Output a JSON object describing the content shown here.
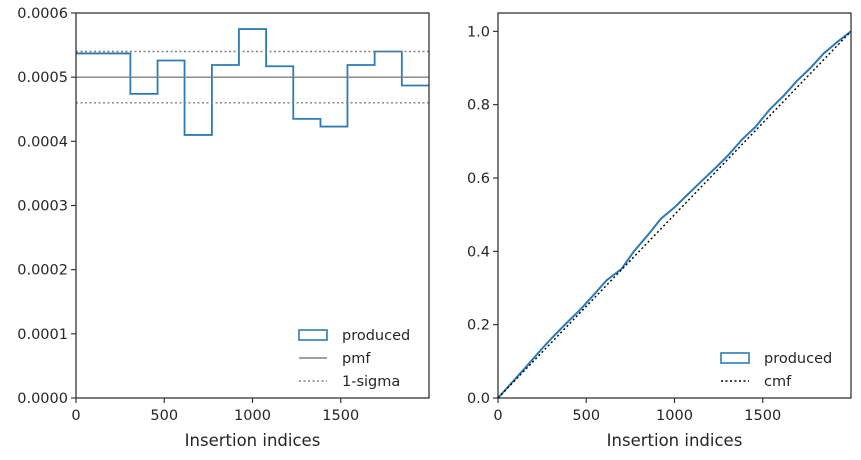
{
  "chart_data": [
    {
      "type": "histogram",
      "xlabel": "Insertion indices",
      "ylabel": "",
      "xlim": [
        0,
        2000
      ],
      "ylim": [
        0,
        0.0006
      ],
      "xticks": [
        0,
        500,
        1000,
        1500
      ],
      "xtick_labels": [
        "0",
        "500",
        "1000",
        "1500"
      ],
      "yticks": [
        0,
        0.0001,
        0.0002,
        0.0003,
        0.0004,
        0.0005,
        0.0006
      ],
      "ytick_labels": [
        "0.0000",
        "0.0001",
        "0.0002",
        "0.0003",
        "0.0004",
        "0.0005",
        "0.0006"
      ],
      "bin_edges": [
        0,
        308,
        462,
        615,
        770,
        923,
        1077,
        1231,
        1385,
        1538,
        1692,
        1846,
        2000
      ],
      "series": [
        {
          "name": "produced",
          "style": "step",
          "color": "#2c7bb6",
          "values": [
            0.000537,
            0.000474,
            0.000526,
            0.00041,
            0.000519,
            0.000575,
            0.000517,
            0.000435,
            0.000423,
            0.000519,
            0.00054,
            0.000487
          ]
        },
        {
          "name": "pmf",
          "style": "solid",
          "color": "#808080",
          "value": 0.0005
        },
        {
          "name": "1-sigma",
          "style": "dotted",
          "color": "#808080",
          "values": [
            0.00046,
            0.00054
          ]
        }
      ],
      "legend": {
        "position": "lower-right",
        "entries": [
          "produced",
          "pmf",
          "1-sigma"
        ]
      },
      "grid": false
    },
    {
      "type": "line",
      "xlabel": "Insertion indices",
      "ylabel": "",
      "xlim": [
        0,
        2000
      ],
      "ylim": [
        0,
        1.05
      ],
      "xticks": [
        0,
        500,
        1000,
        1500
      ],
      "xtick_labels": [
        "0",
        "500",
        "1000",
        "1500"
      ],
      "yticks": [
        0,
        0.2,
        0.4,
        0.6,
        0.8,
        1.0
      ],
      "ytick_labels": [
        "0.0",
        "0.2",
        "0.4",
        "0.6",
        "0.8",
        "1.0"
      ],
      "series": [
        {
          "name": "produced",
          "style": "step",
          "color": "#2c7bb6",
          "x": [
            0,
            150,
            250,
            308,
            400,
            462,
            540,
            615,
            700,
            770,
            850,
            923,
            1000,
            1077,
            1150,
            1231,
            1300,
            1385,
            1460,
            1538,
            1620,
            1692,
            1770,
            1846,
            1920,
            2000
          ],
          "y": [
            0,
            0.08,
            0.135,
            0.165,
            0.21,
            0.239,
            0.28,
            0.321,
            0.352,
            0.4,
            0.445,
            0.489,
            0.52,
            0.556,
            0.59,
            0.627,
            0.66,
            0.706,
            0.74,
            0.786,
            0.825,
            0.864,
            0.9,
            0.94,
            0.97,
            1.0
          ]
        },
        {
          "name": "cmf",
          "style": "dotted",
          "color": "#000000",
          "x": [
            0,
            2000
          ],
          "y": [
            0,
            1.0
          ]
        }
      ],
      "legend": {
        "position": "lower-right",
        "entries": [
          "produced",
          "cmf"
        ]
      },
      "grid": false
    }
  ]
}
